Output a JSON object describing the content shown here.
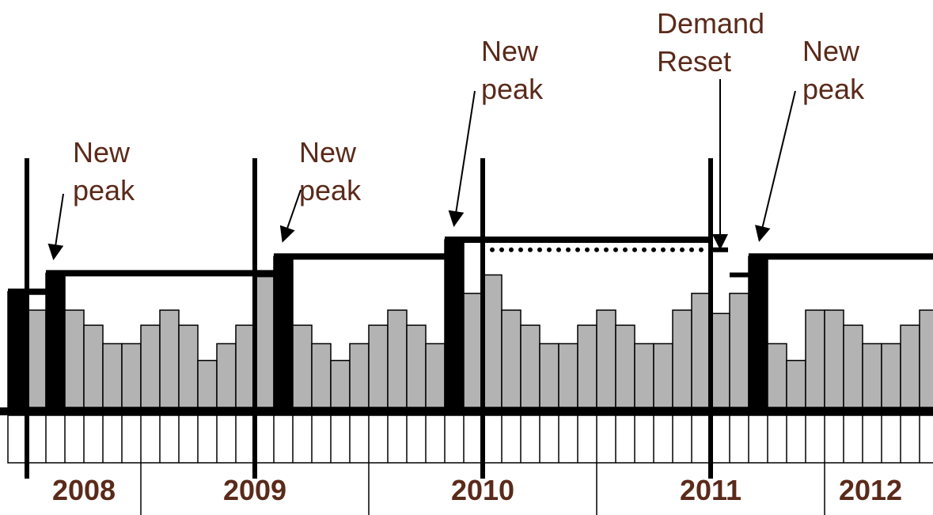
{
  "chart_data": {
    "type": "bar",
    "values": [
      69,
      58,
      80,
      58,
      49,
      38,
      38,
      49,
      58,
      49,
      28,
      38,
      49,
      78,
      90,
      49,
      38,
      28,
      38,
      49,
      58,
      49,
      38,
      100,
      68,
      79,
      58,
      49,
      38,
      38,
      49,
      58,
      49,
      38,
      38,
      58,
      68,
      56,
      68,
      90,
      38,
      28,
      58,
      58,
      49,
      38,
      38,
      49,
      58
    ],
    "color": "#b3b3b3",
    "peak_color": "#000000",
    "peak_months": [
      0,
      2,
      14,
      23,
      39
    ],
    "reset_month": 37,
    "dotted_level": 94,
    "reset_level": 79,
    "ylim": [
      0,
      100
    ],
    "years": [
      "2008",
      "2009",
      "2010",
      "2011",
      "2012"
    ],
    "annotations": [
      {
        "lines": [
          "New",
          "peak"
        ]
      },
      {
        "lines": [
          "New",
          "peak"
        ]
      },
      {
        "lines": [
          "New",
          "peak"
        ]
      },
      {
        "lines": [
          "Demand",
          "Reset"
        ]
      },
      {
        "lines": [
          "New",
          "peak"
        ]
      }
    ]
  }
}
